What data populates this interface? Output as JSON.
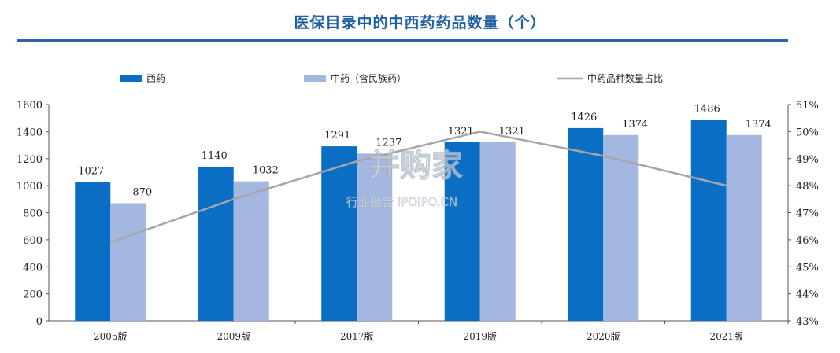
{
  "title": "医保目录中的中西药药品数量（个）",
  "watermark": {
    "brand": "并购家",
    "sub": "行业报告 IPOIPO.CN"
  },
  "colors": {
    "western": "#0a6ec4",
    "tcm": "#a3b7e0",
    "ratio_line": "#a6a6a6",
    "title": "#1f5fa6"
  },
  "chart_data": {
    "type": "bar",
    "categories": [
      "2005版",
      "2009版",
      "2017版",
      "2019版",
      "2020版",
      "2021版"
    ],
    "series": [
      {
        "name": "西药",
        "type": "bar",
        "axis": "left",
        "values": [
          1027,
          1140,
          1291,
          1321,
          1426,
          1486
        ],
        "labels": [
          "1027",
          "1140",
          "1291",
          "1321",
          "1426",
          "1486"
        ]
      },
      {
        "name": "中药（含民族药）",
        "type": "bar",
        "axis": "left",
        "values": [
          870,
          1032,
          1237,
          1321,
          1374,
          1374
        ],
        "labels": [
          "870",
          "1032",
          "1237",
          "1321",
          "1374",
          "1374"
        ]
      },
      {
        "name": "中药品种数量占比",
        "type": "line",
        "axis": "right",
        "values": [
          45.9,
          47.5,
          48.9,
          50.0,
          49.1,
          48.0
        ]
      }
    ],
    "y_left": {
      "min": 0,
      "max": 1600,
      "ticks": [
        "0",
        "200",
        "400",
        "600",
        "800",
        "1000",
        "1200",
        "1400",
        "1600"
      ]
    },
    "y_right": {
      "min": 43,
      "max": 51,
      "ticks": [
        "43%",
        "44%",
        "45%",
        "46%",
        "47%",
        "48%",
        "49%",
        "50%",
        "51%"
      ]
    },
    "legend_position": "top",
    "grid": false
  }
}
